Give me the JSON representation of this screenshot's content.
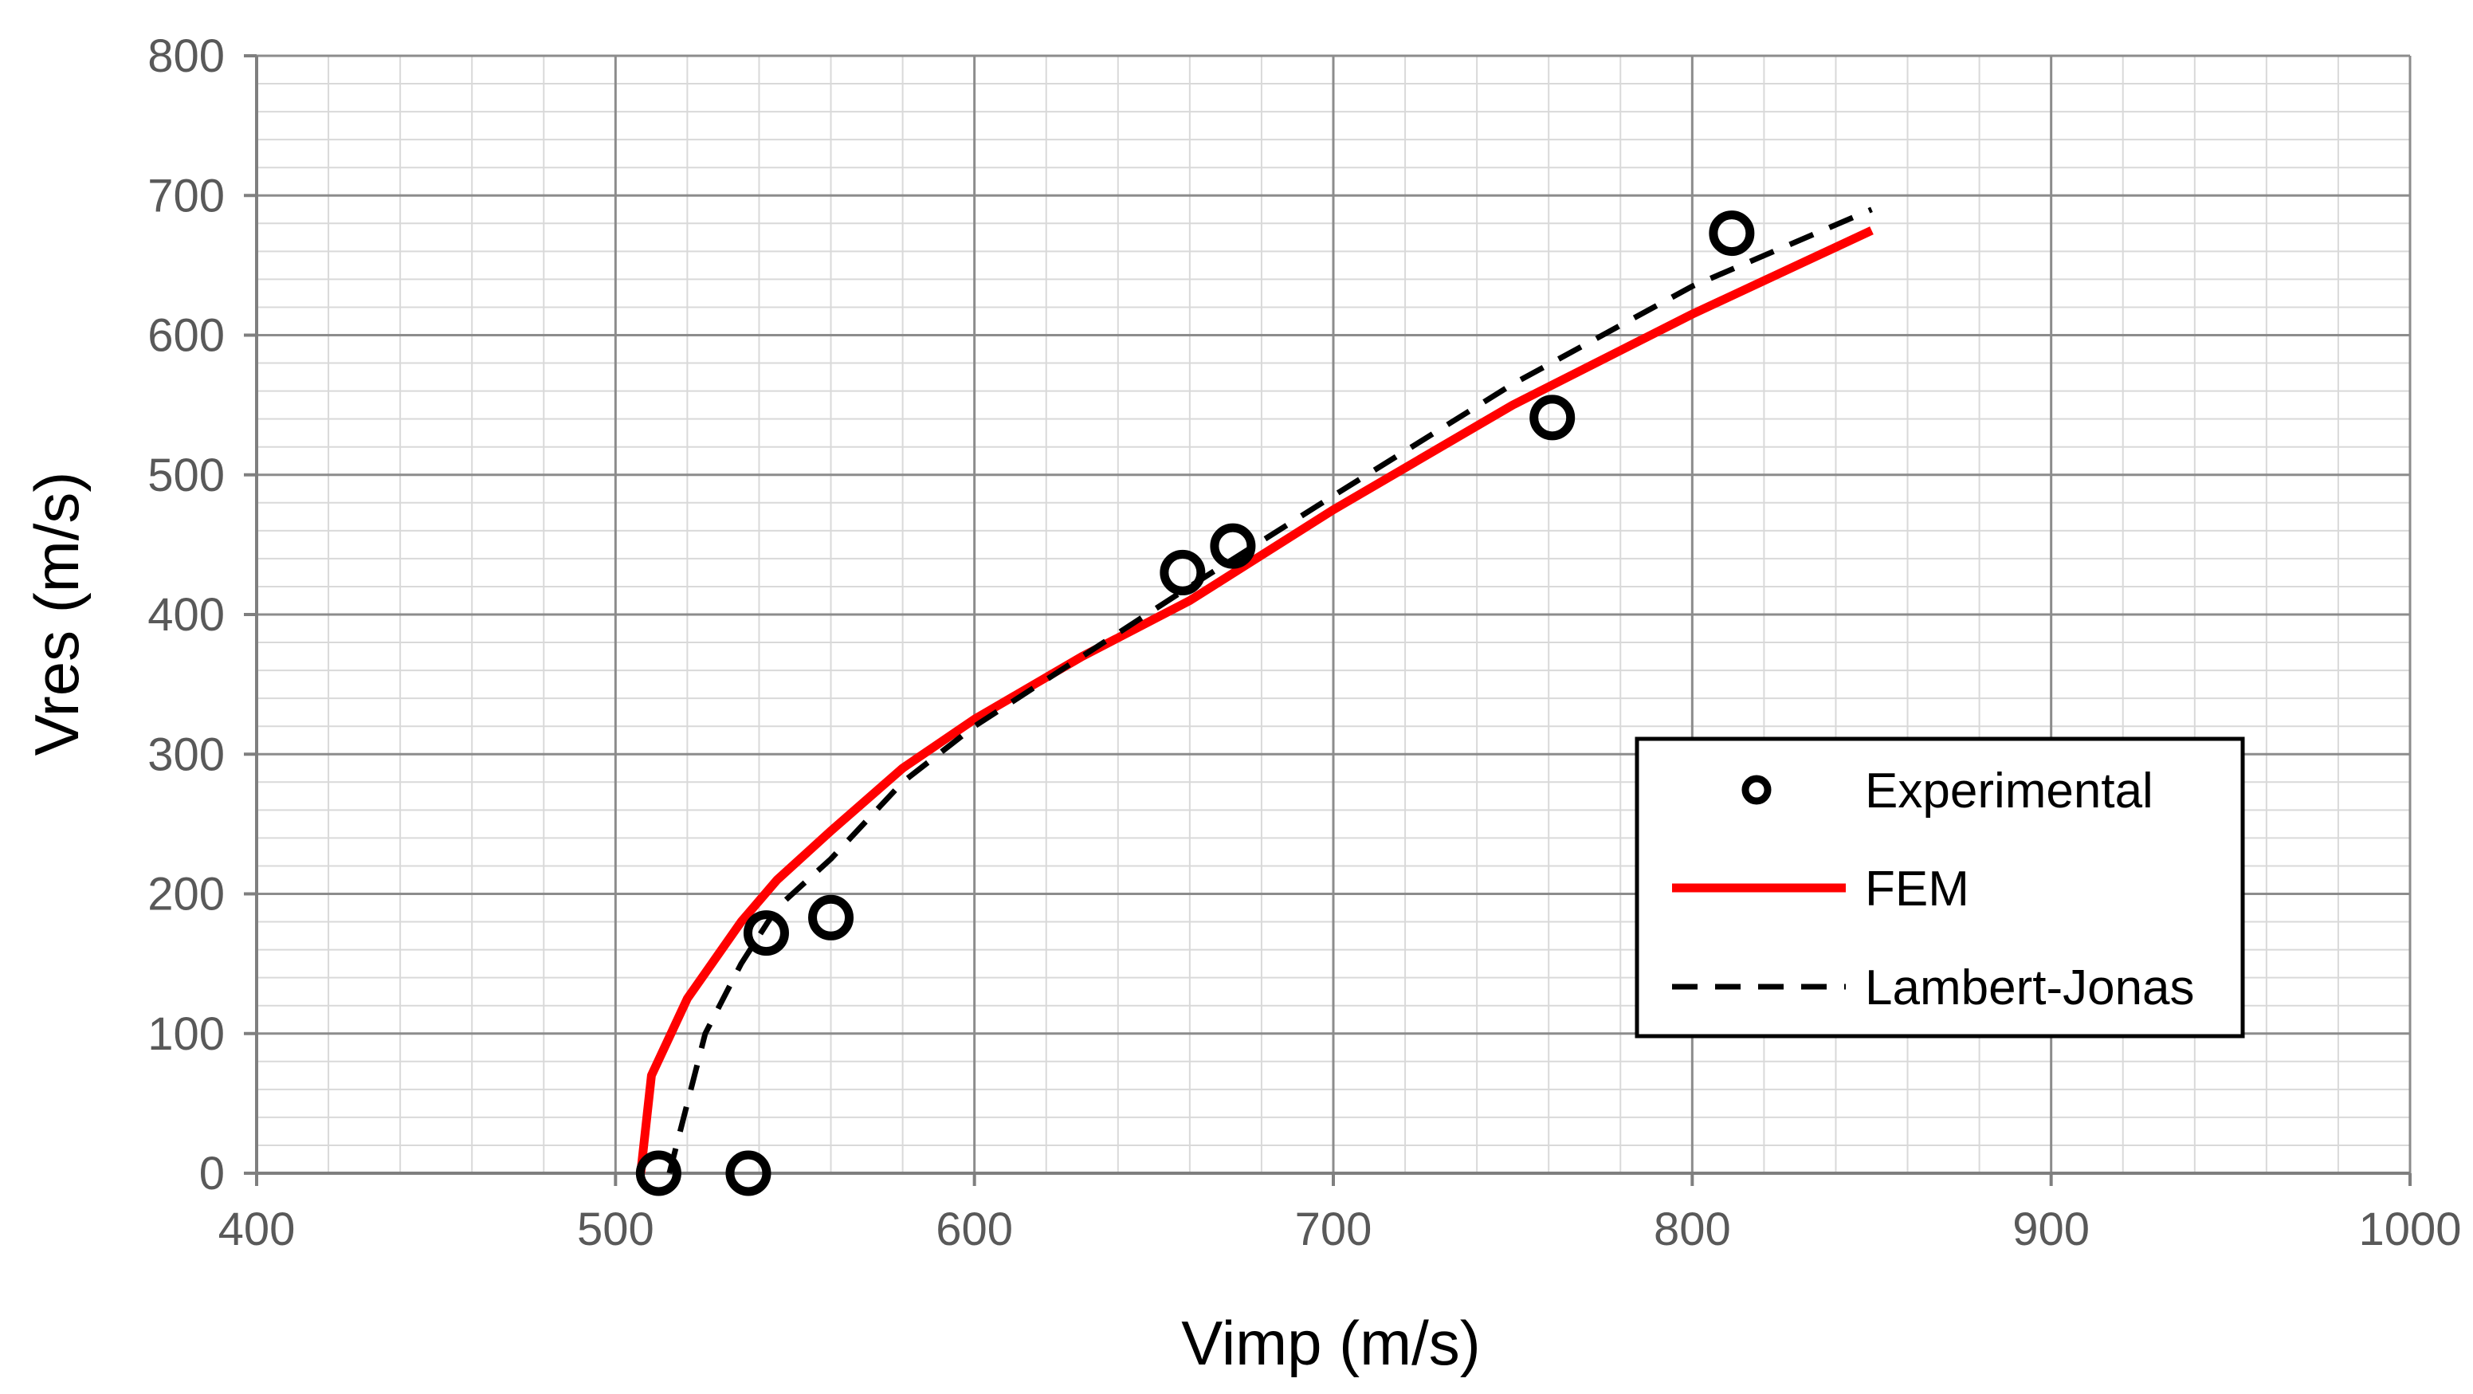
{
  "chart_data": {
    "type": "line",
    "title": "",
    "xlabel": "Vimp (m/s)",
    "ylabel": "Vres (m/s)",
    "xlim": [
      400,
      1000
    ],
    "ylim": [
      0,
      800
    ],
    "x_major_ticks": [
      400,
      500,
      600,
      700,
      800,
      900,
      1000
    ],
    "y_major_ticks": [
      0,
      100,
      200,
      300,
      400,
      500,
      600,
      700,
      800
    ],
    "x_tick_labels": [
      "400",
      "500",
      "600",
      "700",
      "800",
      "900",
      "1000"
    ],
    "y_tick_labels": [
      "0",
      "100",
      "200",
      "300",
      "400",
      "500",
      "600",
      "700",
      "800"
    ],
    "x_minor_step": 20,
    "y_minor_step": 20,
    "grid": true,
    "legend_position": "lower-right",
    "series": [
      {
        "name": "Experimental",
        "kind": "scatter",
        "marker": "open-circle",
        "color": "#000000",
        "x": [
          512,
          537,
          542,
          560,
          658,
          672,
          761,
          811
        ],
        "y": [
          0,
          0,
          172,
          183,
          430,
          449,
          541,
          673
        ]
      },
      {
        "name": "FEM",
        "kind": "line",
        "style": "solid",
        "color": "#ff0000",
        "x": [
          507,
          510,
          520,
          535,
          545,
          560,
          580,
          600,
          630,
          660,
          700,
          750,
          800,
          850
        ],
        "y": [
          0,
          70,
          125,
          180,
          210,
          245,
          290,
          325,
          370,
          410,
          475,
          550,
          615,
          675
        ]
      },
      {
        "name": "Lambert-Jonas",
        "kind": "line",
        "style": "dashed",
        "color": "#000000",
        "x": [
          515,
          520,
          525,
          535,
          545,
          560,
          580,
          600,
          630,
          660,
          700,
          750,
          800,
          850
        ],
        "y": [
          0,
          50,
          100,
          150,
          190,
          225,
          280,
          320,
          370,
          420,
          485,
          565,
          635,
          690
        ]
      }
    ]
  }
}
